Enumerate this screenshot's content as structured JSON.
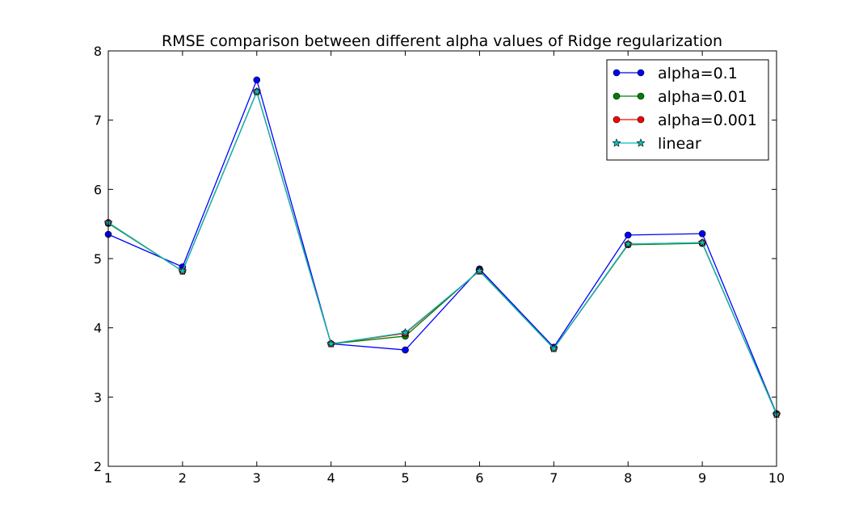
{
  "chart_data": {
    "type": "line",
    "title": "RMSE comparison between different alpha values of Ridge regularization",
    "xlabel": "",
    "ylabel": "",
    "x": [
      1,
      2,
      3,
      4,
      5,
      6,
      7,
      8,
      9,
      10
    ],
    "xlim": [
      1,
      10
    ],
    "ylim": [
      2,
      8
    ],
    "xticks": [
      "1",
      "2",
      "3",
      "4",
      "5",
      "6",
      "7",
      "8",
      "9",
      "10"
    ],
    "yticks": [
      "2",
      "3",
      "4",
      "5",
      "6",
      "7",
      "8"
    ],
    "grid": false,
    "legend_position": "top-right",
    "series": [
      {
        "name": "alpha=0.1",
        "color": "#0000ff",
        "marker": "circle",
        "values": [
          5.35,
          4.88,
          7.58,
          3.77,
          3.68,
          4.85,
          3.72,
          5.34,
          5.36,
          2.76
        ]
      },
      {
        "name": "alpha=0.01",
        "color": "#008000",
        "marker": "circle",
        "values": [
          5.51,
          4.82,
          7.41,
          3.77,
          3.88,
          4.83,
          3.7,
          5.2,
          5.22,
          2.76
        ]
      },
      {
        "name": "alpha=0.001",
        "color": "#ff0000",
        "marker": "circle",
        "values": [
          5.52,
          4.82,
          7.41,
          3.77,
          3.92,
          4.82,
          3.7,
          5.21,
          5.23,
          2.75
        ]
      },
      {
        "name": "linear",
        "color": "#00bfbf",
        "marker": "star",
        "values": [
          5.52,
          4.82,
          7.41,
          3.77,
          3.93,
          4.82,
          3.7,
          5.21,
          5.23,
          2.75
        ]
      }
    ]
  }
}
